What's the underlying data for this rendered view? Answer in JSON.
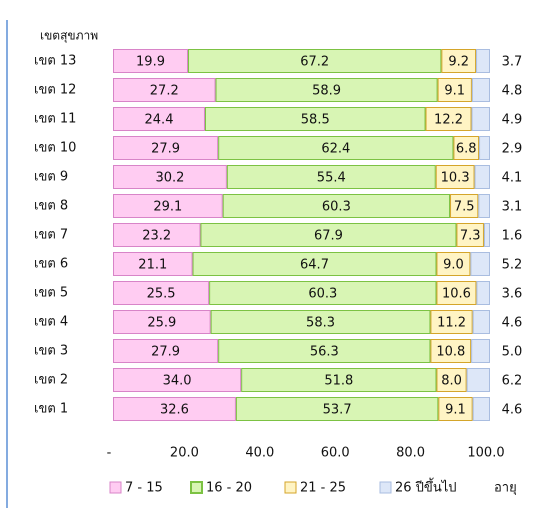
{
  "chart_data": {
    "type": "stacked_bar_horizontal",
    "y_axis_label": "เขตสุขภาพ",
    "x_axis_label": "อายุ",
    "categories": [
      "เขต 13",
      "เขต 12",
      "เขต 11",
      "เขต 10",
      "เขต 9",
      "เขต 8",
      "เขต 7",
      "เขต 6",
      "เขต 5",
      "เขต 4",
      "เขต 3",
      "เขต 2",
      "เขต 1"
    ],
    "series": [
      {
        "name": "7 - 15",
        "color": "#ffccf2",
        "stroke": "#d884c8",
        "values": [
          19.9,
          27.2,
          24.4,
          27.9,
          30.2,
          29.1,
          23.2,
          21.1,
          25.5,
          25.9,
          27.9,
          34.0,
          32.6
        ],
        "value_labels": [
          "19.9",
          "27.2",
          "24.4",
          "27.9",
          "30.2",
          "29.1",
          "23.2",
          "21.1",
          "25.5",
          "25.9",
          "27.9",
          "34.0",
          "32.6"
        ]
      },
      {
        "name": "16 - 20",
        "color": "#d8f5b4",
        "stroke": "#7cc243",
        "values": [
          67.2,
          58.9,
          58.5,
          62.4,
          55.4,
          60.3,
          67.9,
          64.7,
          60.3,
          58.3,
          56.3,
          51.8,
          53.7
        ],
        "value_labels": [
          "67.2",
          "58.9",
          "58.5",
          "62.4",
          "55.4",
          "60.3",
          "67.9",
          "64.7",
          "60.3",
          "58.3",
          "56.3",
          "51.8",
          "53.7"
        ]
      },
      {
        "name": "21 - 25",
        "color": "#fff4c4",
        "stroke": "#d4a52a",
        "values": [
          9.2,
          9.1,
          12.2,
          6.8,
          10.3,
          7.5,
          7.3,
          9.0,
          10.6,
          11.2,
          10.8,
          8.0,
          9.1
        ],
        "value_labels": [
          "9.2",
          "9.1",
          "12.2",
          "6.8",
          "10.3",
          "7.5",
          "7.3",
          "9.0",
          "10.6",
          "11.2",
          "10.8",
          "8.0",
          "9.1"
        ]
      },
      {
        "name": "26 ปีขึ้นไป",
        "color": "#dde7f8",
        "stroke": "#a9bde0",
        "values": [
          3.7,
          4.8,
          4.9,
          2.9,
          4.1,
          3.1,
          1.6,
          5.2,
          3.6,
          4.6,
          5.0,
          6.2,
          4.6
        ],
        "value_labels": [
          "3.7",
          "4.8",
          "4.9",
          "2.9",
          "4.1",
          "3.1",
          "1.6",
          "5.2",
          "3.6",
          "4.6",
          "5.0",
          "6.2",
          "4.6"
        ]
      }
    ],
    "xlim": [
      0,
      100
    ],
    "xticks": [
      {
        "value": 0,
        "label": "-"
      },
      {
        "value": 20,
        "label": "20.0"
      },
      {
        "value": 40,
        "label": "40.0"
      },
      {
        "value": 60,
        "label": "60.0"
      },
      {
        "value": 80,
        "label": "80.0"
      },
      {
        "value": 100,
        "label": "100.0"
      }
    ]
  }
}
